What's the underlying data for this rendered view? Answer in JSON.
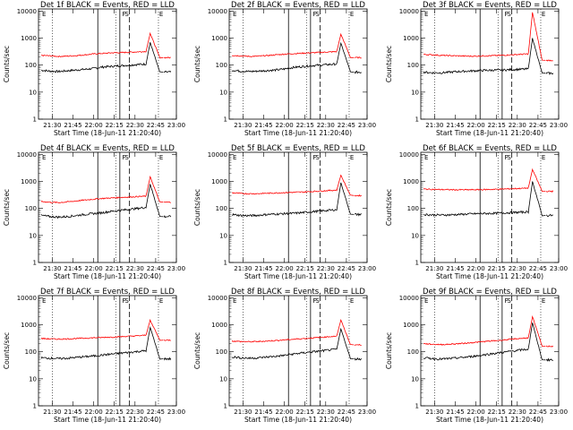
{
  "chart_data": {
    "type": "line",
    "layout": "3x3 grid",
    "xlabel": "Start Time (18-Jun-11 21:20:40)",
    "ylabel": "Counts/sec",
    "x_ticks": [
      "21:30",
      "21:45",
      "22:00",
      "22:15",
      "22:30",
      "22:45",
      "23:00"
    ],
    "x_range_minutes_after_21_20": [
      0,
      100
    ],
    "y_scale": "log",
    "y_range": [
      1,
      12000
    ],
    "y_ticks": [
      "1",
      "10",
      "100",
      "1000",
      "10000"
    ],
    "legend": "in title",
    "series_colors": {
      "events": "#000000",
      "lld": "#ff0000"
    },
    "markers": {
      "dotted_x": [
        "21:30",
        "22:16",
        "22:47"
      ],
      "solid_x": [
        "22:03",
        "22:19"
      ],
      "dashed_x": [
        "22:26"
      ],
      "letters": [
        {
          "label": "E",
          "x": "21:24"
        },
        {
          "label": "F",
          "x": "22:22"
        },
        {
          "label": "S",
          "x": "22:24"
        },
        {
          "label": "E",
          "x": "22:49"
        }
      ]
    },
    "panels": [
      {
        "title": "Det 1f BLACK = Events, RED = LLD",
        "events_base": [
          65,
          60,
          58,
          62,
          66,
          70,
          75,
          85,
          90,
          95,
          100,
          105,
          110
        ],
        "lld_base": [
          230,
          220,
          210,
          215,
          225,
          240,
          260,
          270,
          285,
          290,
          300,
          310,
          320
        ],
        "peak_events": 700,
        "peak_lld": 1500,
        "after_events": 55,
        "after_lld": 190
      },
      {
        "title": "Det 2f BLACK = Events, RED = LLD",
        "events_base": [
          65,
          60,
          58,
          60,
          63,
          66,
          72,
          82,
          88,
          95,
          100,
          105,
          110
        ],
        "lld_base": [
          230,
          220,
          210,
          215,
          225,
          240,
          255,
          265,
          275,
          285,
          295,
          305,
          315
        ],
        "peak_events": 650,
        "peak_lld": 1400,
        "after_events": 55,
        "after_lld": 190
      },
      {
        "title": "Det 3f BLACK = Events, RED = LLD",
        "events_base": [
          55,
          52,
          52,
          55,
          58,
          60,
          62,
          64,
          65,
          66,
          68,
          70,
          72
        ],
        "lld_base": [
          250,
          240,
          230,
          225,
          220,
          215,
          215,
          220,
          225,
          230,
          240,
          250,
          260
        ],
        "peak_events": 1000,
        "peak_lld": 9000,
        "after_events": 50,
        "after_lld": 150
      },
      {
        "title": "Det 4f BLACK = Events, RED = LLD",
        "events_base": [
          55,
          50,
          48,
          50,
          55,
          60,
          65,
          70,
          78,
          85,
          92,
          100,
          110
        ],
        "lld_base": [
          180,
          170,
          165,
          175,
          190,
          205,
          220,
          235,
          245,
          255,
          265,
          275,
          285
        ],
        "peak_events": 800,
        "peak_lld": 1500,
        "after_events": 50,
        "after_lld": 170
      },
      {
        "title": "Det 5f BLACK = Events, RED = LLD",
        "events_base": [
          60,
          55,
          54,
          56,
          60,
          62,
          64,
          66,
          70,
          75,
          80,
          85,
          90
        ],
        "lld_base": [
          380,
          360,
          350,
          355,
          365,
          375,
          385,
          395,
          405,
          420,
          440,
          460,
          480
        ],
        "peak_events": 900,
        "peak_lld": 1700,
        "after_events": 60,
        "after_lld": 300
      },
      {
        "title": "Det 6f BLACK = Events, RED = LLD",
        "events_base": [
          60,
          58,
          57,
          58,
          60,
          62,
          64,
          65,
          66,
          68,
          70,
          72,
          75
        ],
        "lld_base": [
          520,
          510,
          500,
          495,
          490,
          490,
          495,
          500,
          510,
          520,
          535,
          550,
          570
        ],
        "peak_events": 1000,
        "peak_lld": 2800,
        "after_events": 55,
        "after_lld": 430
      },
      {
        "title": "Det 7f BLACK = Events, RED = LLD",
        "events_base": [
          60,
          58,
          56,
          58,
          62,
          66,
          70,
          76,
          82,
          88,
          95,
          102,
          110
        ],
        "lld_base": [
          310,
          300,
          295,
          300,
          310,
          320,
          330,
          340,
          350,
          360,
          375,
          390,
          410
        ],
        "peak_events": 800,
        "peak_lld": 1500,
        "after_events": 55,
        "after_lld": 270
      },
      {
        "title": "Det 8f BLACK = Events, RED = LLD",
        "events_base": [
          65,
          60,
          58,
          60,
          64,
          68,
          74,
          82,
          90,
          98,
          106,
          115,
          125
        ],
        "lld_base": [
          250,
          240,
          235,
          240,
          250,
          260,
          275,
          290,
          305,
          320,
          340,
          360,
          380
        ],
        "peak_events": 700,
        "peak_lld": 1500,
        "after_events": 55,
        "after_lld": 180
      },
      {
        "title": "Det 9f BLACK = Events, RED = LLD",
        "events_base": [
          60,
          56,
          54,
          56,
          60,
          64,
          70,
          78,
          86,
          95,
          104,
          115,
          125
        ],
        "lld_base": [
          200,
          190,
          185,
          190,
          200,
          210,
          225,
          240,
          255,
          270,
          290,
          310,
          330
        ],
        "peak_events": 1200,
        "peak_lld": 2000,
        "after_events": 50,
        "after_lld": 160
      }
    ]
  }
}
